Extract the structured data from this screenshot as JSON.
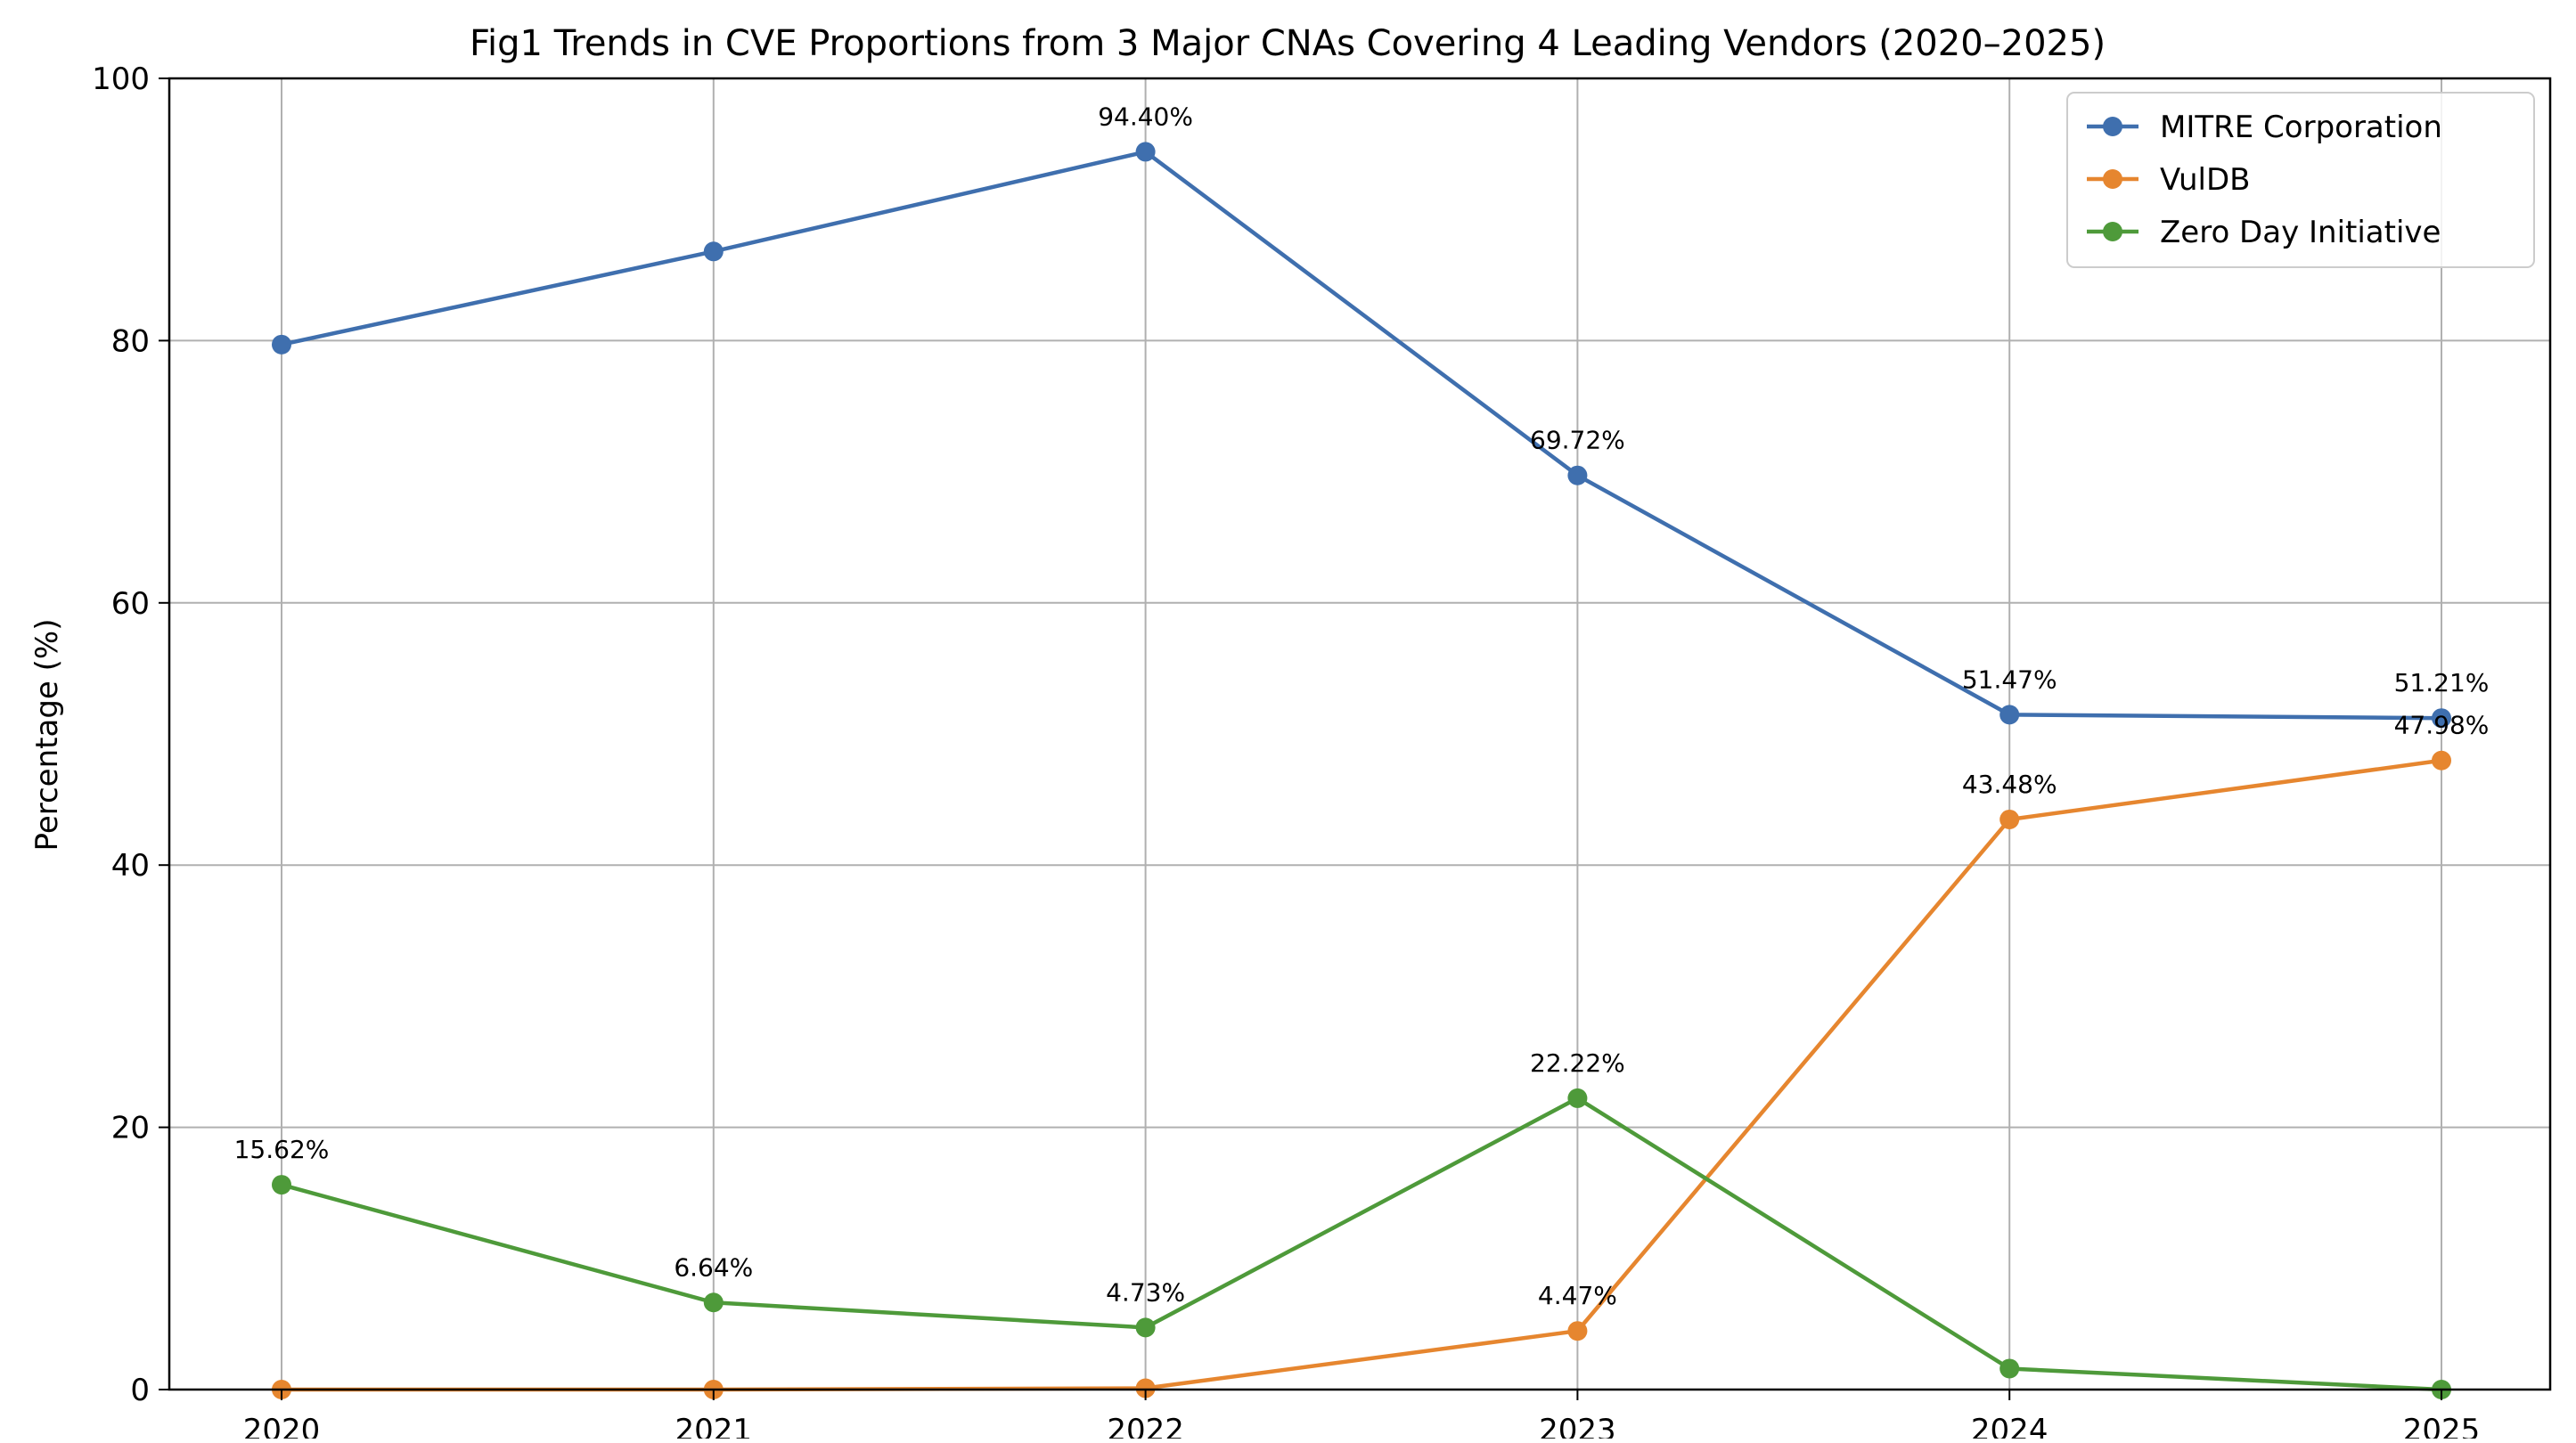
{
  "chart_data": {
    "type": "line",
    "title": "Fig1 Trends in CVE Proportions from 3 Major CNAs Covering 4 Leading Vendors (2020–2025)",
    "xlabel": "",
    "ylabel": "Percentage (%)",
    "x": [
      "2020",
      "2021",
      "2022",
      "2023",
      "2024",
      "2025"
    ],
    "ylim": [
      0,
      100
    ],
    "yticks": [
      "0",
      "20",
      "40",
      "60",
      "80",
      "100"
    ],
    "grid": true,
    "legend_position": "top-right",
    "series": [
      {
        "name": "MITRE Corporation",
        "color": "#3f6fae",
        "values": [
          79.7,
          86.8,
          94.4,
          69.72,
          51.47,
          51.21
        ],
        "labels": [
          null,
          null,
          "94.40%",
          "69.72%",
          "51.47%",
          "51.21%"
        ]
      },
      {
        "name": "VulDB",
        "color": "#e6862f",
        "values": [
          0,
          0,
          0.1,
          4.47,
          43.48,
          47.98
        ],
        "labels": [
          null,
          null,
          null,
          "4.47%",
          "43.48%",
          "47.98%"
        ]
      },
      {
        "name": "Zero Day Initiative",
        "color": "#4e9a3a",
        "values": [
          15.62,
          6.64,
          4.73,
          22.22,
          1.6,
          0
        ],
        "labels": [
          "15.62%",
          "6.64%",
          "4.73%",
          "22.22%",
          null,
          null
        ]
      }
    ]
  }
}
